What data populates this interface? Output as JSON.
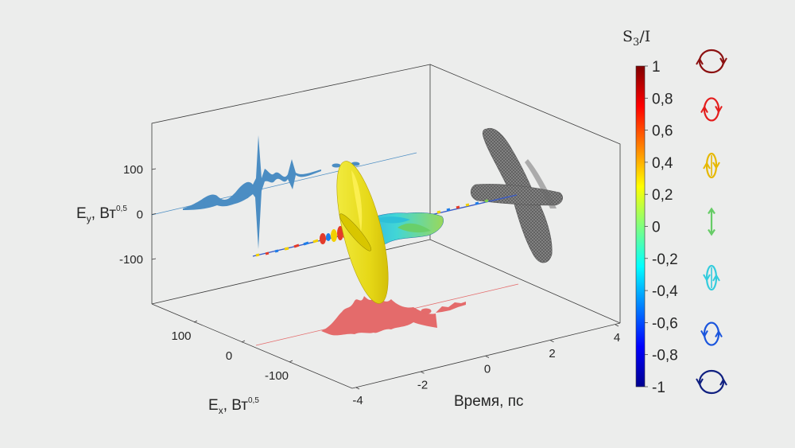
{
  "chart_data": {
    "type": "3d-line",
    "xlabel": "Время, пс",
    "xticks": [
      -4,
      -2,
      0,
      2,
      4
    ],
    "ex_label": {
      "main": "E",
      "sub": "x",
      "unit": ", Вт",
      "sup": "0,5"
    },
    "ex_ticks": [
      100,
      0,
      -100
    ],
    "ey_label": {
      "main": "E",
      "sub": "y",
      "unit": ", Вт",
      "sup": "0,5"
    },
    "ey_ticks": [
      100,
      0,
      -100
    ],
    "colorbar": {
      "title_main": "S",
      "title_sub": "3",
      "title_rest": "/I",
      "ticks": [
        "1",
        "0,8",
        "0,6",
        "0,4",
        "0,2",
        "0",
        "-0,2",
        "-0,4",
        "-0,6",
        "-0,8",
        "-1"
      ],
      "range": [
        -1,
        1
      ],
      "colormap": "jet"
    },
    "projections": [
      {
        "name": "Ey",
        "color": "#4b8dc3"
      },
      {
        "name": "Ex",
        "color": "#e46b6b"
      },
      {
        "name": "Ex-Ey",
        "color": "#6b6b6b"
      }
    ],
    "polarization_icons": [
      {
        "s3": 1,
        "color": "#8c1111"
      },
      {
        "s3": 0.7,
        "color": "#e31d1d"
      },
      {
        "s3": 0.35,
        "color": "#e6b800"
      },
      {
        "s3": 0,
        "color": "#66cc66"
      },
      {
        "s3": -0.35,
        "color": "#33ccdd"
      },
      {
        "s3": -0.7,
        "color": "#1a55dd"
      },
      {
        "s3": -1,
        "color": "#102080"
      }
    ]
  }
}
